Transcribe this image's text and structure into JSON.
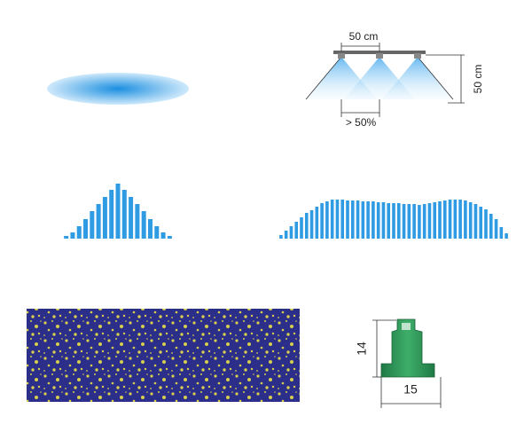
{
  "labels": {
    "spacing": "50 cm",
    "height": "50 cm",
    "overlap": "> 50%",
    "nozzle_height": 14,
    "nozzle_width": 15
  },
  "distributions": [
    {
      "values": [
        3,
        7,
        14,
        22,
        31,
        39,
        47,
        55,
        62,
        55,
        47,
        39,
        31,
        22,
        14,
        7,
        3
      ]
    },
    {
      "values": [
        4,
        9,
        14,
        19,
        24,
        29,
        32,
        36,
        40,
        42,
        44,
        44,
        44,
        43,
        43,
        43,
        42,
        42,
        42,
        41,
        41,
        40,
        40,
        40,
        39,
        39,
        39,
        38,
        39,
        40,
        41,
        42,
        43,
        44,
        44,
        44,
        43,
        41,
        39,
        36,
        33,
        28,
        22,
        13,
        6
      ]
    }
  ]
}
